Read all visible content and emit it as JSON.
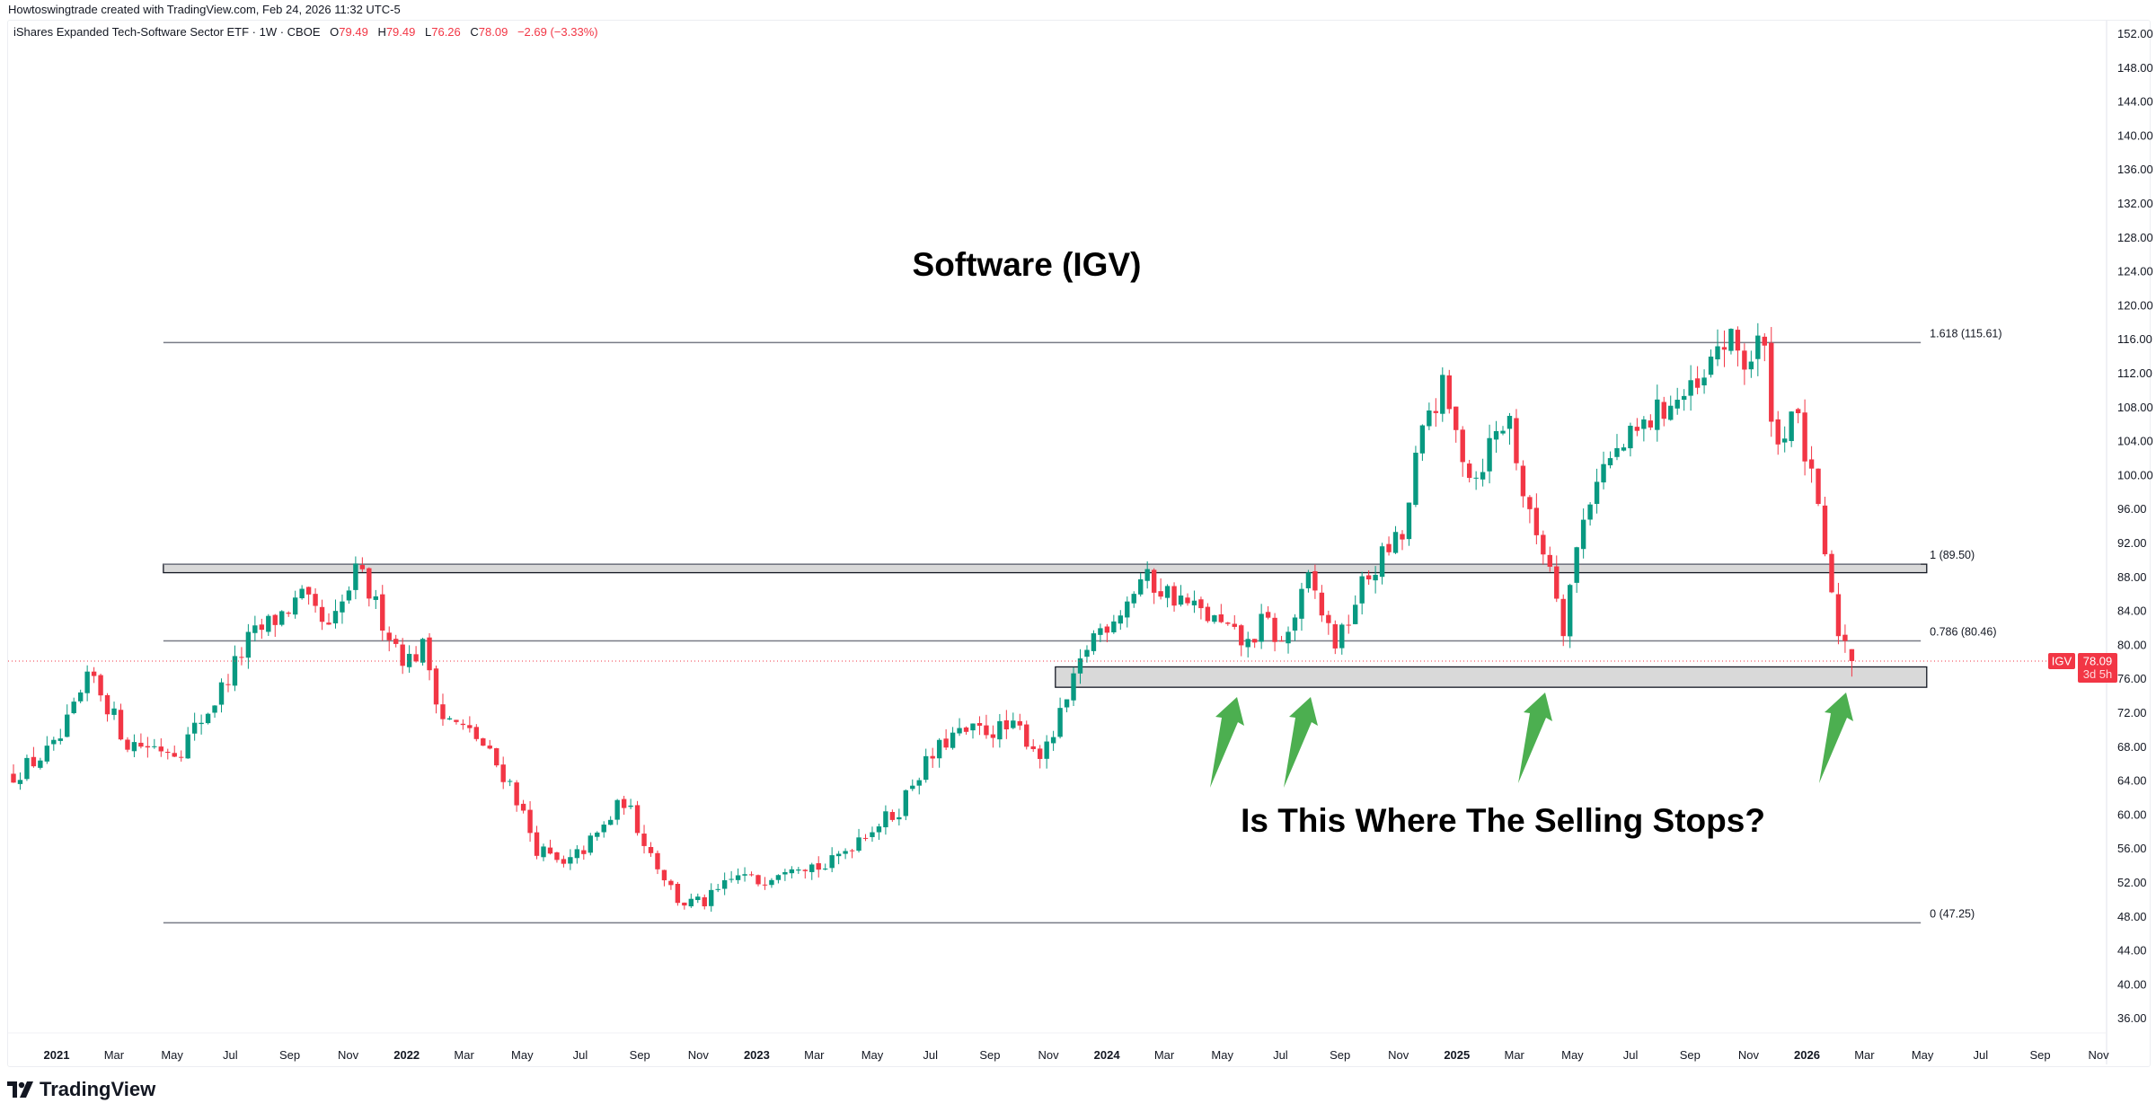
{
  "header": {
    "credit": "Howtoswingtrade created with TradingView.com, Feb 24, 2026 11:32 UTC-5",
    "symbol_desc": "iShares Expanded Tech-Software Sector ETF · 1W · CBOE",
    "o_label": "O",
    "o": "79.49",
    "h_label": "H",
    "h": "79.49",
    "l_label": "L",
    "l": "76.26",
    "c_label": "C",
    "c": "78.09",
    "change": "−2.69 (−3.33%)"
  },
  "annotations": {
    "title": "Software (IGV)",
    "question": "Is This Where The Selling Stops?"
  },
  "price_label": {
    "ticker": "IGV",
    "price": "78.09",
    "countdown": "3d 5h"
  },
  "logo": {
    "text": "TradingView"
  },
  "colors": {
    "up": "#089981",
    "down": "#f23645",
    "arrow": "#4caf50",
    "zone_fill": "#d9d9d9",
    "level_line": "#787b86",
    "accent": "#f23645"
  },
  "chart_data": {
    "type": "candlestick",
    "title": "Software (IGV)",
    "symbol": "IGV",
    "interval": "1W",
    "ylim": [
      33,
      155
    ],
    "yticks": [
      "152.00",
      "148.00",
      "144.00",
      "140.00",
      "136.00",
      "132.00",
      "128.00",
      "124.00",
      "120.00",
      "116.00",
      "112.00",
      "108.00",
      "104.00",
      "100.00",
      "96.00",
      "92.00",
      "88.00",
      "84.00",
      "80.00",
      "76.00",
      "72.00",
      "68.00",
      "64.00",
      "60.00",
      "56.00",
      "52.00",
      "48.00",
      "44.00",
      "40.00",
      "36.00"
    ],
    "xticks": [
      {
        "label": "2021",
        "t": 2021.0,
        "bold": true
      },
      {
        "label": "Mar",
        "t": 2021.164
      },
      {
        "label": "May",
        "t": 2021.33
      },
      {
        "label": "Jul",
        "t": 2021.496
      },
      {
        "label": "Sep",
        "t": 2021.666
      },
      {
        "label": "Nov",
        "t": 2021.833
      },
      {
        "label": "2022",
        "t": 2022.0,
        "bold": true
      },
      {
        "label": "Mar",
        "t": 2022.164
      },
      {
        "label": "May",
        "t": 2022.33
      },
      {
        "label": "Jul",
        "t": 2022.496
      },
      {
        "label": "Sep",
        "t": 2022.666
      },
      {
        "label": "Nov",
        "t": 2022.833
      },
      {
        "label": "2023",
        "t": 2023.0,
        "bold": true
      },
      {
        "label": "Mar",
        "t": 2023.164
      },
      {
        "label": "May",
        "t": 2023.33
      },
      {
        "label": "Jul",
        "t": 2023.496
      },
      {
        "label": "Sep",
        "t": 2023.666
      },
      {
        "label": "Nov",
        "t": 2023.833
      },
      {
        "label": "2024",
        "t": 2024.0,
        "bold": true
      },
      {
        "label": "Mar",
        "t": 2024.164
      },
      {
        "label": "May",
        "t": 2024.33
      },
      {
        "label": "Jul",
        "t": 2024.496
      },
      {
        "label": "Sep",
        "t": 2024.666
      },
      {
        "label": "Nov",
        "t": 2024.833
      },
      {
        "label": "2025",
        "t": 2025.0,
        "bold": true
      },
      {
        "label": "Mar",
        "t": 2025.164
      },
      {
        "label": "May",
        "t": 2025.33
      },
      {
        "label": "Jul",
        "t": 2025.496
      },
      {
        "label": "Sep",
        "t": 2025.666
      },
      {
        "label": "Nov",
        "t": 2025.833
      },
      {
        "label": "2026",
        "t": 2026.0,
        "bold": true
      },
      {
        "label": "Mar",
        "t": 2026.164
      },
      {
        "label": "May",
        "t": 2026.33
      },
      {
        "label": "Jul",
        "t": 2026.496
      },
      {
        "label": "Sep",
        "t": 2026.666
      },
      {
        "label": "Nov",
        "t": 2026.833
      }
    ],
    "close_path_anchors": [
      [
        2020.87,
        64.5
      ],
      [
        2021.0,
        68
      ],
      [
        2021.1,
        76.6
      ],
      [
        2021.2,
        68.5
      ],
      [
        2021.35,
        67.6
      ],
      [
        2021.45,
        73.3
      ],
      [
        2021.55,
        80.6
      ],
      [
        2021.7,
        85.5
      ],
      [
        2021.78,
        81.4
      ],
      [
        2021.86,
        88.8
      ],
      [
        2021.95,
        81.4
      ],
      [
        2022.0,
        78
      ],
      [
        2022.05,
        79.8
      ],
      [
        2022.1,
        71.6
      ],
      [
        2022.2,
        69.1
      ],
      [
        2022.3,
        63.4
      ],
      [
        2022.37,
        56.1
      ],
      [
        2022.45,
        53.7
      ],
      [
        2022.55,
        57.8
      ],
      [
        2022.62,
        61.8
      ],
      [
        2022.7,
        55.3
      ],
      [
        2022.78,
        49.6
      ],
      [
        2022.85,
        49.6
      ],
      [
        2022.95,
        52.9
      ],
      [
        2023.0,
        52
      ],
      [
        2023.1,
        54.5
      ],
      [
        2023.2,
        53.7
      ],
      [
        2023.3,
        57.8
      ],
      [
        2023.4,
        60.2
      ],
      [
        2023.45,
        64.3
      ],
      [
        2023.55,
        69.1
      ],
      [
        2023.65,
        70
      ],
      [
        2023.75,
        70
      ],
      [
        2023.82,
        66.7
      ],
      [
        2023.9,
        74.8
      ],
      [
        2023.95,
        80.6
      ],
      [
        2024.05,
        84.7
      ],
      [
        2024.1,
        87.9
      ],
      [
        2024.2,
        85.5
      ],
      [
        2024.3,
        83
      ],
      [
        2024.4,
        79.8
      ],
      [
        2024.45,
        83
      ],
      [
        2024.5,
        79.8
      ],
      [
        2024.55,
        84.7
      ],
      [
        2024.58,
        87.9
      ],
      [
        2024.62,
        83
      ],
      [
        2024.66,
        79.8
      ],
      [
        2024.72,
        86.3
      ],
      [
        2024.8,
        91.2
      ],
      [
        2024.85,
        92.8
      ],
      [
        2024.88,
        101
      ],
      [
        2024.92,
        107.5
      ],
      [
        2024.96,
        110
      ],
      [
        2025.0,
        104.3
      ],
      [
        2025.05,
        99.4
      ],
      [
        2025.1,
        104.3
      ],
      [
        2025.15,
        106.7
      ],
      [
        2025.2,
        95.4
      ],
      [
        2025.25,
        91.2
      ],
      [
        2025.28,
        88
      ],
      [
        2025.3,
        81.4
      ],
      [
        2025.33,
        88.8
      ],
      [
        2025.36,
        94.5
      ],
      [
        2025.4,
        100.2
      ],
      [
        2025.5,
        104.3
      ],
      [
        2025.6,
        108.4
      ],
      [
        2025.7,
        110
      ],
      [
        2025.75,
        115.8
      ],
      [
        2025.8,
        115
      ],
      [
        2025.83,
        112.6
      ],
      [
        2025.87,
        116.6
      ],
      [
        2025.9,
        107.5
      ],
      [
        2025.92,
        102.6
      ],
      [
        2025.95,
        108.4
      ],
      [
        2025.98,
        105.1
      ],
      [
        2026.02,
        97.8
      ],
      [
        2026.05,
        91.2
      ],
      [
        2026.08,
        82.2
      ],
      [
        2026.1,
        81.4
      ],
      [
        2026.128,
        78.09
      ]
    ],
    "last_candle": {
      "t": 2026.128,
      "open": 79.49,
      "high": 79.49,
      "low": 76.26,
      "close": 78.09
    },
    "current_price": 78.09,
    "fib_levels": [
      {
        "label": "1.618 (115.61)",
        "price": 115.61
      },
      {
        "label": "1 (89.50)",
        "price": 89.5
      },
      {
        "label": "0.786 (80.46)",
        "price": 80.46
      },
      {
        "label": "0 (47.25)",
        "price": 47.25
      }
    ],
    "fib_range_t": [
      2021.305,
      2026.325
    ],
    "zones": [
      {
        "top": 89.5,
        "bottom": 88.5,
        "t_start": 2021.305,
        "t_end": 2026.342
      },
      {
        "top": 77.4,
        "bottom": 75.0,
        "t_start": 2023.853,
        "t_end": 2026.342
      }
    ],
    "arrows_t": [
      {
        "t": 2024.62,
        "price": 73.6
      },
      {
        "t": 2024.83,
        "price": 73.6
      },
      {
        "t": 2025.51,
        "price": 74.1
      },
      {
        "t": 2027.0,
        "price": 74.1
      }
    ]
  }
}
